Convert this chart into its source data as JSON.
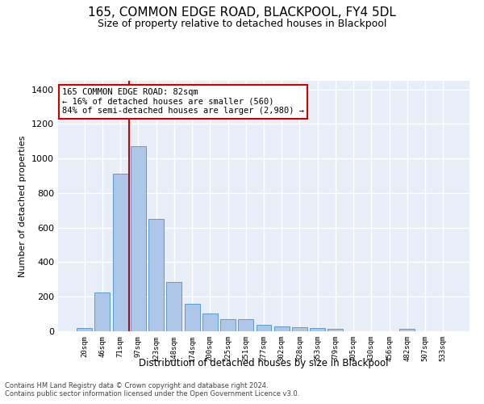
{
  "title1": "165, COMMON EDGE ROAD, BLACKPOOL, FY4 5DL",
  "title2": "Size of property relative to detached houses in Blackpool",
  "xlabel": "Distribution of detached houses by size in Blackpool",
  "ylabel": "Number of detached properties",
  "categories": [
    "20sqm",
    "46sqm",
    "71sqm",
    "97sqm",
    "123sqm",
    "148sqm",
    "174sqm",
    "200sqm",
    "225sqm",
    "251sqm",
    "277sqm",
    "302sqm",
    "328sqm",
    "353sqm",
    "379sqm",
    "405sqm",
    "430sqm",
    "456sqm",
    "482sqm",
    "507sqm",
    "533sqm"
  ],
  "values": [
    18,
    225,
    910,
    1070,
    650,
    285,
    160,
    105,
    70,
    70,
    38,
    28,
    22,
    20,
    15,
    0,
    0,
    0,
    12,
    0,
    0
  ],
  "bar_color": "#aec6e8",
  "bar_edge_color": "#5b9bd5",
  "red_line_x": 2.5,
  "annotation_text": "165 COMMON EDGE ROAD: 82sqm\n← 16% of detached houses are smaller (560)\n84% of semi-detached houses are larger (2,980) →",
  "annotation_box_color": "#ffffff",
  "annotation_box_edge_color": "#cc0000",
  "footer1": "Contains HM Land Registry data © Crown copyright and database right 2024.",
  "footer2": "Contains public sector information licensed under the Open Government Licence v3.0.",
  "ylim": [
    0,
    1450
  ],
  "yticks": [
    0,
    200,
    400,
    600,
    800,
    1000,
    1200,
    1400
  ],
  "background_color": "#e8eef8",
  "grid_color": "#ffffff",
  "title1_fontsize": 11,
  "title2_fontsize": 9
}
